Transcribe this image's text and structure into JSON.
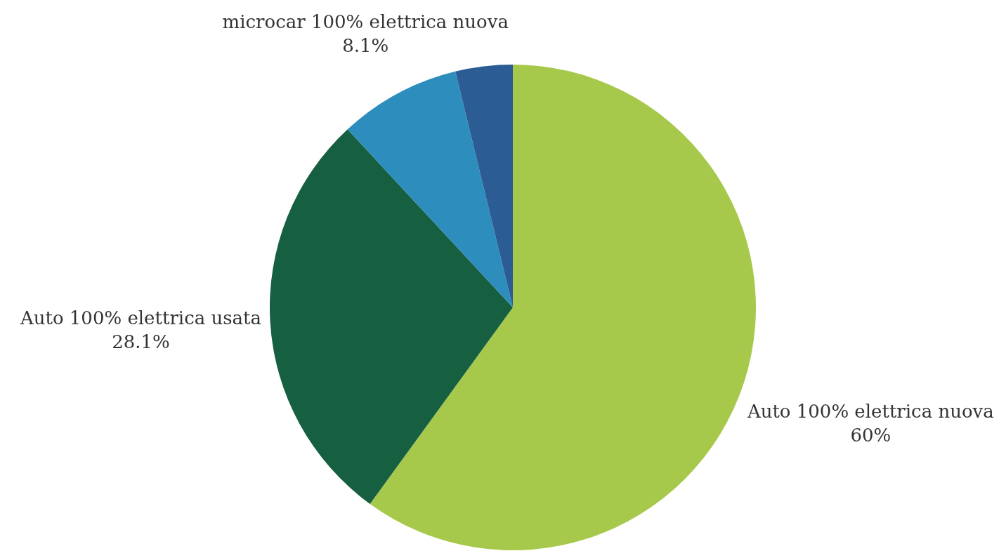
{
  "chart_data": {
    "type": "pie",
    "categories": [
      "Auto 100% elettrica nuova",
      "Auto 100% elettrica usata",
      "microcar 100% elettrica nuova",
      null
    ],
    "values": [
      60,
      28.1,
      8.1,
      3.8
    ],
    "colors": [
      "#a6c94b",
      "#165f41",
      "#2d8dbd",
      "#2b5c94"
    ],
    "value_labels": [
      "60%",
      "28.1%",
      "8.1%",
      null
    ]
  }
}
